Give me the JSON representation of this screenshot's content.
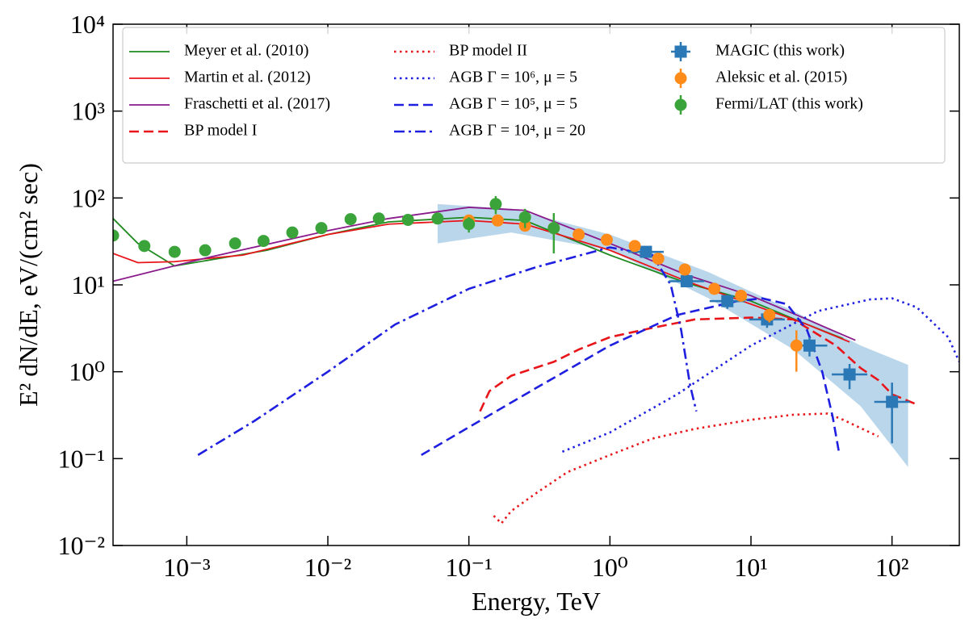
{
  "chart_data": {
    "type": "line",
    "x_label": "Energy, TeV",
    "y_label": "E² dN/dE, eV/(cm² sec)",
    "xscale": "log",
    "yscale": "log",
    "xlim": [
      0.0003,
      300
    ],
    "ylim": [
      0.01,
      10000
    ],
    "xticks": [
      {
        "value": 0.001,
        "label": "10⁻³"
      },
      {
        "value": 0.01,
        "label": "10⁻²"
      },
      {
        "value": 0.1,
        "label": "10⁻¹"
      },
      {
        "value": 1,
        "label": "10⁰"
      },
      {
        "value": 10,
        "label": "10¹"
      },
      {
        "value": 100,
        "label": "10²"
      }
    ],
    "yticks": [
      {
        "value": 0.01,
        "label": "10⁻²"
      },
      {
        "value": 0.1,
        "label": "10⁻¹"
      },
      {
        "value": 1,
        "label": "10⁰"
      },
      {
        "value": 10,
        "label": "10¹"
      },
      {
        "value": 100,
        "label": "10²"
      },
      {
        "value": 1000,
        "label": "10³"
      },
      {
        "value": 10000,
        "label": "10⁴"
      }
    ],
    "legend": {
      "loc": "upper center",
      "ncol": 3
    },
    "band": {
      "color": "#a9cce6",
      "x": [
        0.06,
        0.2,
        1,
        5,
        20,
        60,
        130
      ],
      "upper": [
        85,
        75,
        38,
        14,
        5,
        2,
        1.2
      ],
      "lower": [
        30,
        40,
        25,
        7,
        1.8,
        0.4,
        0.08
      ]
    },
    "series": [
      {
        "name": "Meyer et al. (2010)",
        "style": "line",
        "dash": "solid",
        "color": "#1f8a1f",
        "x": [
          0.0003,
          0.00045,
          0.00082,
          0.0037,
          0.01,
          0.027,
          0.1,
          0.25,
          1,
          3.5,
          10,
          25,
          45
        ],
        "values": [
          58,
          30,
          16.5,
          25,
          38,
          53,
          60,
          55,
          22,
          10.5,
          6.5,
          3.5,
          2.4
        ]
      },
      {
        "name": "Martin et al. (2012)",
        "style": "line",
        "dash": "solid",
        "color": "#e8161b",
        "x": [
          0.0003,
          0.00045,
          0.00082,
          0.0025,
          0.01,
          0.027,
          0.1,
          0.25,
          1,
          3.5,
          10,
          25,
          50
        ],
        "values": [
          23,
          18,
          18.5,
          22,
          38,
          50,
          55,
          50,
          25,
          11,
          6,
          3.5,
          2.2
        ]
      },
      {
        "name": "Fraschetti et al. (2017)",
        "style": "line",
        "dash": "solid",
        "color": "#8b1a8b",
        "x": [
          0.0003,
          0.0013,
          0.01,
          0.027,
          0.1,
          0.25,
          1,
          3.5,
          10,
          25,
          55
        ],
        "values": [
          11,
          20,
          42,
          58,
          78,
          72,
          30,
          13,
          7.5,
          4,
          2.3
        ]
      },
      {
        "name": "BP model I",
        "style": "line",
        "dash": "dashed",
        "color": "#e8161b",
        "x": [
          0.12,
          0.14,
          0.2,
          0.4,
          0.6,
          1,
          2,
          4,
          10,
          20,
          40,
          60,
          80,
          100,
          150
        ],
        "values": [
          0.35,
          0.6,
          0.9,
          1.3,
          1.8,
          2.5,
          3.2,
          4,
          4.2,
          4,
          2,
          1.1,
          0.8,
          0.55,
          0.42
        ]
      },
      {
        "name": "BP model II",
        "style": "line",
        "dash": "dotted",
        "color": "#e8161b",
        "x": [
          0.15,
          0.17,
          0.2,
          0.3,
          0.5,
          1,
          2,
          4,
          10,
          20,
          35,
          45,
          80
        ],
        "values": [
          0.022,
          0.018,
          0.025,
          0.04,
          0.07,
          0.11,
          0.17,
          0.22,
          0.28,
          0.32,
          0.33,
          0.28,
          0.18
        ]
      },
      {
        "name": "AGB Γ = 10⁶, μ = 5",
        "style": "line",
        "dash": "dotted",
        "color": "#1f1fe0",
        "x": [
          0.46,
          1,
          3,
          10,
          30,
          70,
          100,
          150,
          250,
          300
        ],
        "values": [
          0.12,
          0.2,
          0.55,
          2,
          5,
          6.8,
          7,
          5.5,
          2.5,
          1.3
        ]
      },
      {
        "name": "AGB Γ = 10⁵, μ = 5",
        "style": "line",
        "dash": "dashed",
        "color": "#1f1fe0",
        "x": [
          0.046,
          0.1,
          0.3,
          1,
          3,
          8,
          12,
          18,
          25,
          32,
          38,
          42
        ],
        "values": [
          0.11,
          0.23,
          0.65,
          2,
          4.5,
          6.5,
          7,
          6,
          3,
          1,
          0.3,
          0.12
        ]
      },
      {
        "name": "AGB Γ = 10⁴, μ = 20",
        "style": "line",
        "dash": "dashdot",
        "color": "#1f1fe0",
        "x": [
          0.0012,
          0.003,
          0.01,
          0.03,
          0.1,
          0.3,
          1,
          2,
          2.7,
          3.2,
          3.7,
          4.1
        ],
        "values": [
          0.11,
          0.27,
          1,
          3.5,
          9,
          16,
          27,
          22,
          10,
          3,
          0.7,
          0.35
        ]
      },
      {
        "name": "MAGIC (this work)",
        "style": "points",
        "marker": "square",
        "color": "#2a78b5",
        "x": [
          1.8,
          3.5,
          6.8,
          13,
          26,
          50,
          100
        ],
        "values": [
          24,
          11,
          6.5,
          4,
          2,
          0.93,
          0.45
        ],
        "yerr": [
          3,
          1.5,
          1.2,
          0.8,
          0.5,
          0.3,
          0.3
        ]
      },
      {
        "name": "Aleksic et al. (2015)",
        "style": "points",
        "marker": "circle",
        "color": "#ff8c1a",
        "x": [
          0.1,
          0.16,
          0.25,
          0.4,
          0.6,
          0.95,
          1.5,
          2.2,
          3.4,
          5.5,
          8.5,
          13.5,
          21
        ],
        "values": [
          55,
          55,
          48,
          45,
          38,
          33,
          28,
          20,
          15,
          9,
          7.5,
          4.5,
          2
        ],
        "yerr": [
          3,
          3,
          3,
          3,
          2,
          2,
          2,
          2,
          1.5,
          1,
          0.8,
          0.8,
          1
        ]
      },
      {
        "name": "Fermi/LAT (this work)",
        "style": "points",
        "marker": "circle",
        "color": "#3aa33a",
        "x": [
          0.0003,
          0.0005,
          0.00082,
          0.00135,
          0.0022,
          0.0035,
          0.0056,
          0.009,
          0.0145,
          0.023,
          0.037,
          0.06,
          0.1,
          0.155,
          0.25,
          0.4
        ],
        "values": [
          37,
          28,
          24,
          25,
          30,
          32,
          40,
          45,
          57,
          58,
          56,
          58,
          50,
          85,
          60,
          45
        ],
        "yerr": [
          2,
          2,
          2,
          2,
          2,
          2,
          2,
          2,
          3,
          3,
          3,
          4,
          10,
          20,
          15,
          22
        ]
      }
    ]
  }
}
